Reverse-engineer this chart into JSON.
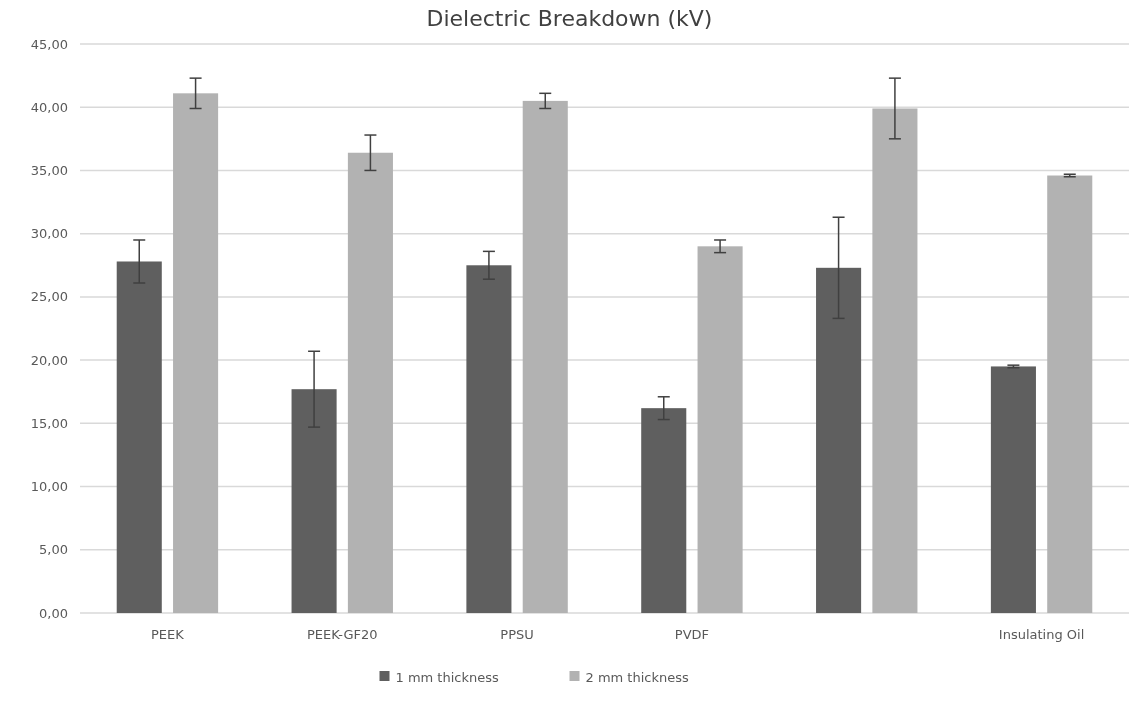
{
  "chart_data": {
    "type": "bar",
    "title": "Dielectric Breakdown (kV)",
    "categories": [
      "PEEK",
      "PEEK-GF20",
      "PPSU",
      "PVDF",
      null,
      "Insulating Oil"
    ],
    "series": [
      {
        "name": "1 mm thickness",
        "color": "#5f5f5f",
        "values": [
          27.8,
          17.7,
          27.5,
          16.2,
          27.3,
          19.5
        ],
        "errors": [
          1.7,
          3.0,
          1.1,
          0.9,
          4.0,
          0.1
        ]
      },
      {
        "name": "2 mm thickness",
        "color": "#b2b2b2",
        "values": [
          41.1,
          36.4,
          40.5,
          29.0,
          39.9,
          34.6
        ],
        "errors": [
          1.2,
          1.4,
          0.6,
          0.5,
          2.4,
          0.1
        ]
      }
    ],
    "ylim": [
      0,
      45
    ],
    "yticks": [
      {
        "value": 0,
        "label": "0,00"
      },
      {
        "value": 5,
        "label": "5,00"
      },
      {
        "value": 10,
        "label": "10,00"
      },
      {
        "value": 15,
        "label": "15,00"
      },
      {
        "value": 20,
        "label": "20,00"
      },
      {
        "value": 25,
        "label": "25,00"
      },
      {
        "value": 30,
        "label": "30,00"
      },
      {
        "value": 35,
        "label": "35,00"
      },
      {
        "value": 40,
        "label": "40,00"
      },
      {
        "value": 45,
        "label": "45,00"
      }
    ],
    "grid": "y",
    "legend": "bottom"
  }
}
